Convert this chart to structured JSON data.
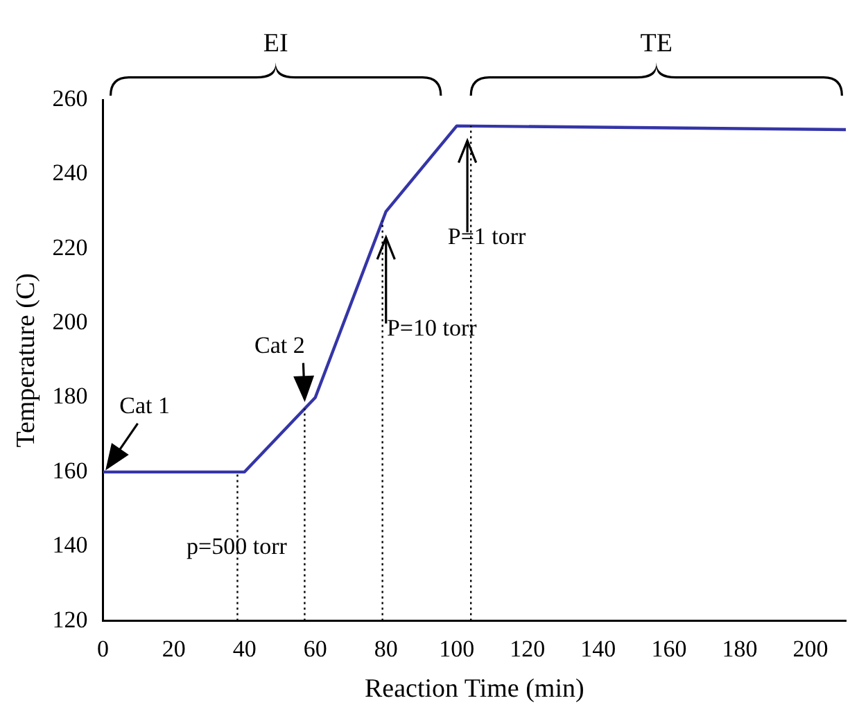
{
  "chart_data": {
    "type": "line",
    "xlabel": "Reaction Time (min)",
    "ylabel": "Temperature (C)",
    "x": [
      0,
      40,
      60,
      80,
      100,
      210
    ],
    "series": [
      {
        "color": "#3535a8",
        "values": [
          160,
          160,
          180,
          230,
          253,
          252
        ]
      }
    ],
    "xlim": [
      0,
      210
    ],
    "xticks": [
      0,
      20,
      40,
      60,
      80,
      100,
      120,
      140,
      160,
      180,
      200
    ],
    "ylim": [
      120,
      260
    ],
    "yticks": [
      120,
      140,
      160,
      180,
      200,
      220,
      240,
      260
    ],
    "grid": false,
    "legend": false,
    "marker": "none",
    "line_style": "solid",
    "ref_lines": [
      {
        "axis": "x",
        "value": 38,
        "line_style": "dotted"
      },
      {
        "axis": "x",
        "value": 57,
        "line_style": "dotted"
      },
      {
        "axis": "x",
        "value": 79,
        "line_style": "dotted"
      },
      {
        "axis": "x",
        "value": 104,
        "line_style": "dotted"
      }
    ],
    "annotations": [
      {
        "text": "Cat 1",
        "x": 0,
        "y": 160
      },
      {
        "text": "Cat 2",
        "x": 57,
        "y": 177
      },
      {
        "text": "P=10 torr",
        "x": 80,
        "y": 223
      },
      {
        "text": "P=1 torr",
        "x": 103,
        "y": 249
      },
      "p=500 torr",
      "EI",
      "TE"
    ]
  }
}
